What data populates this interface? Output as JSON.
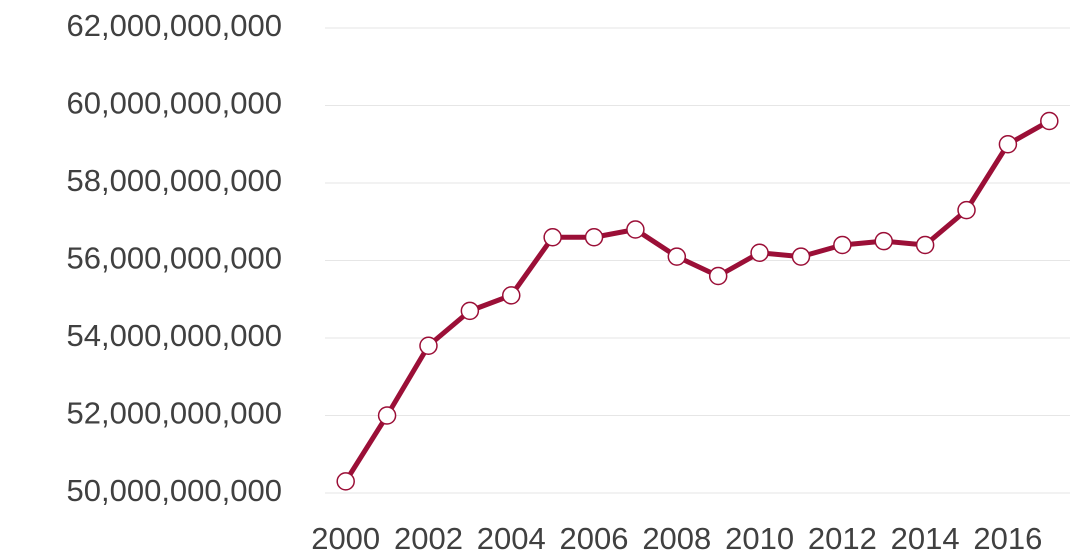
{
  "chart_data": {
    "type": "line",
    "x": [
      2000,
      2001,
      2002,
      2003,
      2004,
      2005,
      2006,
      2007,
      2008,
      2009,
      2010,
      2011,
      2012,
      2013,
      2014,
      2015,
      2016,
      2017
    ],
    "series": [
      {
        "color": "#9b0f37",
        "values": [
          50300000000,
          52000000000,
          53800000000,
          54700000000,
          55100000000,
          56600000000,
          56600000000,
          56800000000,
          56100000000,
          55600000000,
          56200000000,
          56100000000,
          56400000000,
          56500000000,
          56400000000,
          57300000000,
          59000000000,
          59600000000
        ]
      }
    ],
    "xlim": [
      1999.5,
      2017.5
    ],
    "xticks": [
      2000,
      2002,
      2004,
      2006,
      2008,
      2010,
      2012,
      2014,
      2016
    ],
    "ylim": [
      50000000000,
      62000000000
    ],
    "yticks": [
      {
        "value": 50000000000,
        "label": "50,000,000,000"
      },
      {
        "value": 52000000000,
        "label": "52,000,000,000"
      },
      {
        "value": 54000000000,
        "label": "54,000,000,000"
      },
      {
        "value": 56000000000,
        "label": "56,000,000,000"
      },
      {
        "value": 58000000000,
        "label": "58,000,000,000"
      },
      {
        "value": 60000000000,
        "label": "60,000,000,000"
      },
      {
        "value": 62000000000,
        "label": "62,000,000,000"
      }
    ],
    "grid": true
  }
}
